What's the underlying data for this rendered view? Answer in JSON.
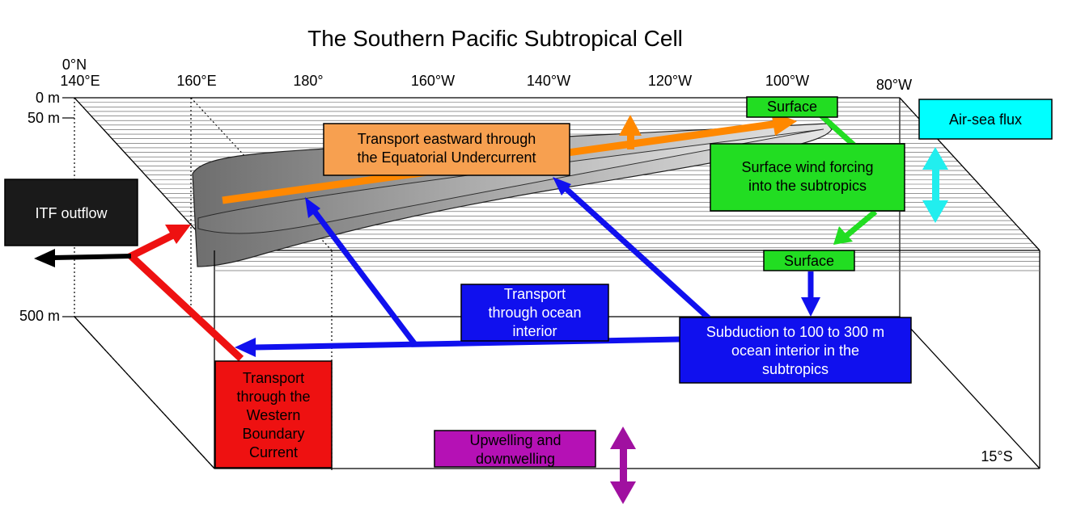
{
  "title": "The Southern Pacific Subtropical Cell",
  "latitude_labels": {
    "top": "0°N",
    "bottom": "15°S"
  },
  "longitude_ticks": [
    "140°E",
    "160°E",
    "180°",
    "160°W",
    "140°W",
    "120°W",
    "100°W",
    "80°W"
  ],
  "depth_ticks": [
    "0 m",
    "50 m",
    "500 m"
  ],
  "boxes": {
    "itf": {
      "lines": [
        "ITF outflow"
      ]
    },
    "euc": {
      "lines": [
        "Transport eastward through",
        "the Equatorial Undercurrent"
      ]
    },
    "surface_top": {
      "lines": [
        "Surface"
      ]
    },
    "wind": {
      "lines": [
        "Surface wind forcing",
        "into the subtropics"
      ]
    },
    "surface_bottom": {
      "lines": [
        "Surface"
      ]
    },
    "airsea": {
      "lines": [
        "Air-sea flux"
      ]
    },
    "interior": {
      "lines": [
        "Transport",
        "through ocean",
        "interior"
      ]
    },
    "subduction": {
      "lines": [
        "Subduction to 100 to 300 m",
        "ocean interior in the",
        "subtropics"
      ]
    },
    "wbc": {
      "lines": [
        "Transport",
        "through the",
        "Western",
        "Boundary",
        "Current"
      ]
    },
    "upwelling": {
      "lines": [
        "Upwelling and",
        "downwelling"
      ]
    }
  },
  "colors": {
    "itf": "#1a1a1a",
    "euc": "#f7a050",
    "euc_arrow": "#ff8800",
    "surface": "#22dd22",
    "airsea": "#00ffff",
    "airsea_arrow": "#22eeee",
    "interior": "#1010ee",
    "wbc": "#ee1111",
    "upwelling": "#b511b5",
    "upwelling_arrow": "#a010a0"
  }
}
